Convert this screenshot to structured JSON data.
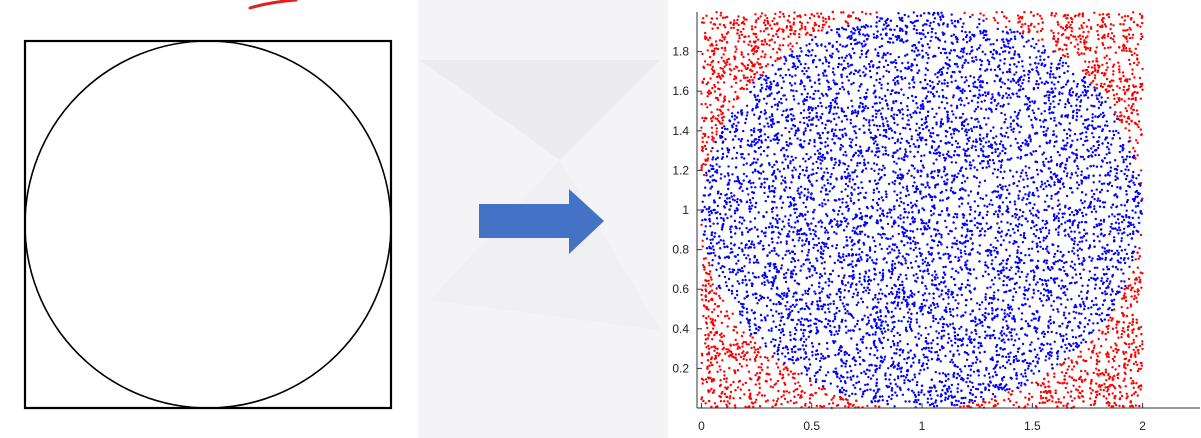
{
  "colors": {
    "shape_stroke": "#000000",
    "arrow": "#4472C4",
    "inside_points": "#0000FF",
    "outside_points": "#FF0000",
    "annotation_mark": "#E02020",
    "axis": "#333333",
    "backdrop": "#F4F4F6"
  },
  "diagram": {
    "left_figure": {
      "shapes": [
        "square",
        "inscribed-circle"
      ]
    },
    "arrow": {
      "direction": "right",
      "icon": "right-arrow-icon"
    }
  },
  "chart_data": {
    "type": "scatter",
    "xlim": [
      -0.02,
      2.26
    ],
    "ylim": [
      0,
      2
    ],
    "x_ticks": [
      "0",
      "0.5",
      "1",
      "1.5",
      "2"
    ],
    "x_tick_values": [
      0,
      0.5,
      1,
      1.5,
      2
    ],
    "y_ticks": [
      "0.2",
      "0.4",
      "0.6",
      "0.8",
      "1",
      "1.2",
      "1.4",
      "1.6",
      "1.8"
    ],
    "y_tick_values": [
      0.2,
      0.4,
      0.6,
      0.8,
      1,
      1.2,
      1.4,
      1.6,
      1.8
    ],
    "sampling_square": {
      "x": [
        0,
        2
      ],
      "y": [
        0,
        2
      ]
    },
    "circle": {
      "center": [
        1,
        1
      ],
      "radius": 1
    },
    "inside_color": "#0000FF",
    "outside_color": "#FF0000",
    "points_shown": "uniform random samples over [0,2] x [0,2]"
  }
}
